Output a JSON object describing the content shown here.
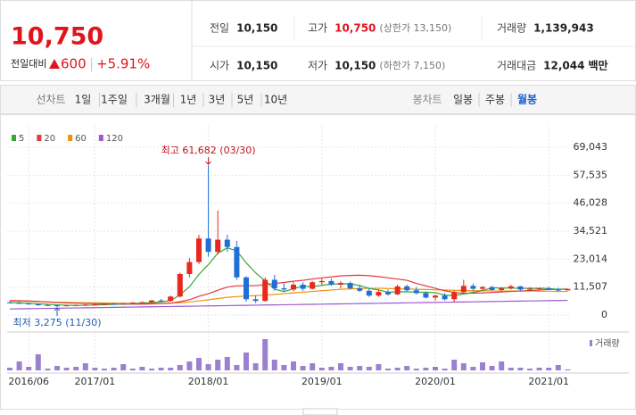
{
  "header": {
    "price": "10,750",
    "change_label": "전일대비",
    "change": "600",
    "change_pct": "+5.91%",
    "stats": [
      {
        "label": "전일",
        "value": "10,150"
      },
      {
        "label": "고가",
        "value": "10,750",
        "note": "(상한가 13,150)"
      },
      {
        "label": "거래량",
        "value": "1,139,943"
      },
      {
        "label": "시가",
        "value": "10,150"
      },
      {
        "label": "저가",
        "value": "10,150",
        "note": "(하한가 7,150)"
      },
      {
        "label": "거래대금",
        "value": "12,044",
        "unit": "백만"
      }
    ]
  },
  "toolbar": {
    "line_chart": "선차트",
    "line_periods": [
      "1일",
      "1주일",
      "3개월",
      "1년",
      "3년",
      "5년",
      "10년"
    ],
    "candle_chart": "봉차트",
    "candle_periods": [
      "일봉",
      "주봉",
      "월봉"
    ]
  },
  "chart_data": [
    {
      "type": "candlestick",
      "high_label": "최고 61,682 (03/30)",
      "low_label": "최저 3,275 (11/30)",
      "categories": [
        null,
        null,
        "2016/06",
        null,
        null,
        null,
        null,
        null,
        null,
        "2017/01",
        null,
        null,
        null,
        null,
        null,
        null,
        null,
        null,
        null,
        null,
        null,
        "2018/01",
        null,
        null,
        null,
        null,
        null,
        null,
        null,
        null,
        null,
        null,
        null,
        "2019/01",
        null,
        null,
        null,
        null,
        null,
        null,
        null,
        null,
        null,
        null,
        null,
        "2020/01",
        null,
        null,
        null,
        null,
        null,
        null,
        null,
        null,
        null,
        null,
        null,
        "2021/01",
        null,
        null
      ],
      "open": [
        5200,
        5000,
        4800,
        4400,
        4100,
        4000,
        3700,
        4000,
        4100,
        4300,
        4400,
        4600,
        4500,
        4900,
        5100,
        5300,
        6000,
        5800,
        7600,
        16900,
        21800,
        31500,
        26000,
        31000,
        28000,
        15500,
        6500,
        5800,
        14500,
        11000,
        10500,
        12500,
        10800,
        13500,
        14000,
        12500,
        13200,
        11000,
        10000,
        8000,
        9500,
        8500,
        11800,
        10200,
        9000,
        7200,
        8000,
        6500,
        9500,
        12000,
        10800,
        11500,
        10300,
        11000,
        11800,
        10500,
        10800,
        11000,
        10500,
        10150
      ],
      "high": [
        5800,
        5400,
        5000,
        4700,
        4500,
        4300,
        4200,
        4300,
        4500,
        4700,
        4800,
        5000,
        5000,
        5300,
        5600,
        6200,
        6600,
        8000,
        17500,
        23500,
        33000,
        61682,
        43000,
        33000,
        30500,
        16000,
        8000,
        15500,
        16500,
        13000,
        13500,
        13500,
        14000,
        15000,
        15000,
        14000,
        13800,
        12500,
        11000,
        10500,
        10500,
        12500,
        12500,
        11500,
        9800,
        8500,
        9000,
        10000,
        14500,
        13000,
        12000,
        12000,
        11500,
        12500,
        12000,
        11500,
        11300,
        11600,
        11200,
        10750
      ],
      "low": [
        4800,
        4600,
        4200,
        3800,
        3800,
        3275,
        3600,
        3800,
        3900,
        4000,
        4200,
        4300,
        4300,
        4600,
        4800,
        5000,
        5500,
        5500,
        7200,
        15500,
        21000,
        24000,
        25000,
        26000,
        14500,
        5500,
        5000,
        5500,
        10000,
        9500,
        9800,
        10000,
        10500,
        12500,
        12000,
        11000,
        10500,
        9500,
        7500,
        7500,
        8000,
        8200,
        9800,
        8500,
        6800,
        6000,
        6000,
        5200,
        9000,
        10000,
        10000,
        10000,
        9800,
        10500,
        10000,
        9900,
        10200,
        10300,
        9800,
        10150
      ],
      "close": [
        5000,
        4800,
        4400,
        4100,
        4000,
        3700,
        4000,
        4100,
        4300,
        4400,
        4600,
        4500,
        4900,
        5100,
        5300,
        6000,
        5800,
        7600,
        16900,
        21800,
        31500,
        26000,
        31000,
        28000,
        15500,
        6500,
        5800,
        14500,
        11000,
        10500,
        12500,
        10800,
        13500,
        14000,
        12500,
        13200,
        11000,
        10000,
        8000,
        9500,
        8500,
        11800,
        10200,
        9000,
        7200,
        8000,
        6500,
        9500,
        12000,
        10800,
        11500,
        10300,
        11000,
        11800,
        10500,
        10800,
        11000,
        10500,
        10100,
        10750
      ],
      "up_color": "#e8281f",
      "down_color": "#1f6fd6",
      "series": [
        {
          "name": "5",
          "color": "#3aa63a",
          "values": [
            5100,
            5000,
            4800,
            4600,
            4460,
            4200,
            4040,
            3980,
            4020,
            4100,
            4280,
            4380,
            4540,
            4720,
            4880,
            5160,
            5420,
            5940,
            8320,
            11620,
            16720,
            20760,
            25440,
            27660,
            26400,
            21500,
            17360,
            14060,
            10660,
            9660,
            10860,
            11860,
            11660,
            12260,
            12660,
            12800,
            12840,
            12140,
            10940,
            10340,
            9400,
            9560,
            9600,
            9400,
            9340,
            9240,
            8180,
            8040,
            8640,
            9360,
            10060,
            11220,
            11120,
            11080,
            11020,
            10980,
            11020,
            10920,
            10580,
            10630
          ]
        },
        {
          "name": "20",
          "color": "#e0393e",
          "values": [
            6000,
            5900,
            5800,
            5600,
            5400,
            5200,
            5000,
            4900,
            4800,
            4700,
            4600,
            4500,
            4500,
            4500,
            4500,
            4600,
            4700,
            4900,
            5500,
            6300,
            7700,
            8800,
            10200,
            11500,
            12000,
            12100,
            12100,
            12500,
            13000,
            13400,
            13900,
            14300,
            14800,
            15300,
            15700,
            16100,
            16300,
            16400,
            16200,
            15800,
            15300,
            14800,
            14300,
            13000,
            12000,
            11000,
            10000,
            9300,
            9000,
            9000,
            9100,
            9300,
            9500,
            9700,
            9900,
            10100,
            10300,
            10500,
            10600,
            10700
          ]
        },
        {
          "name": "60",
          "color": "#f0920f",
          "values": [
            5800,
            5700,
            5600,
            5500,
            5400,
            5300,
            5200,
            5100,
            5000,
            5000,
            4900,
            4900,
            4800,
            4800,
            4800,
            4800,
            4800,
            4900,
            5100,
            5400,
            5800,
            6300,
            6800,
            7300,
            7600,
            7800,
            8000,
            8200,
            8500,
            8800,
            9100,
            9400,
            9700,
            10000,
            10300,
            10600,
            10800,
            10900,
            11000,
            11000,
            10900,
            10800,
            10700,
            10600,
            10500,
            10400,
            10300,
            10200,
            10100,
            10000,
            10000,
            9900,
            9900,
            9900,
            9900,
            9900,
            9800,
            9800,
            9700,
            9700
          ]
        },
        {
          "name": "120",
          "color": "#9b59d0",
          "values": [
            2500,
            2560,
            2620,
            2680,
            2740,
            2800,
            2860,
            2920,
            2980,
            3040,
            3100,
            3160,
            3220,
            3280,
            3340,
            3400,
            3460,
            3520,
            3580,
            3640,
            3700,
            3760,
            3820,
            3880,
            3940,
            4000,
            4060,
            4120,
            4180,
            4240,
            4300,
            4360,
            4420,
            4480,
            4540,
            4600,
            4660,
            4720,
            4780,
            4840,
            4900,
            4960,
            5020,
            5080,
            5140,
            5200,
            5260,
            5320,
            5380,
            5440,
            5500,
            5560,
            5620,
            5680,
            5740,
            5800,
            5860,
            5920,
            5980,
            6040
          ]
        }
      ],
      "ylim": [
        0,
        69043
      ],
      "yticks": [
        0,
        {
          "value": 11507,
          "label": "11,507"
        },
        {
          "value": 23014,
          "label": "23,014"
        },
        {
          "value": 34521,
          "label": "34,521"
        },
        {
          "value": 46028,
          "label": "46,028"
        },
        {
          "value": 57535,
          "label": "57,535"
        },
        {
          "value": 69043,
          "label": "69,043"
        }
      ],
      "grid": true
    },
    {
      "type": "bar",
      "ylim": [
        0,
        35000000
      ],
      "series": [
        {
          "name": "거래량",
          "color": "#9c80d0",
          "values": [
            3000000,
            10000000,
            4000000,
            18000000,
            2000000,
            5000000,
            3000000,
            4000000,
            8000000,
            3000000,
            2000000,
            3000000,
            7000000,
            2000000,
            4000000,
            2000000,
            3000000,
            3000000,
            6000000,
            10000000,
            14000000,
            7000000,
            12000000,
            15000000,
            6000000,
            20000000,
            8000000,
            35000000,
            12000000,
            6000000,
            10000000,
            5000000,
            8000000,
            3000000,
            4000000,
            8000000,
            4000000,
            5000000,
            4000000,
            7000000,
            2000000,
            3000000,
            5000000,
            2000000,
            3000000,
            4000000,
            2000000,
            12000000,
            8000000,
            4000000,
            9000000,
            5000000,
            10000000,
            3000000,
            3000000,
            2000000,
            3000000,
            3000000,
            6000000,
            1139943
          ]
        }
      ]
    }
  ]
}
